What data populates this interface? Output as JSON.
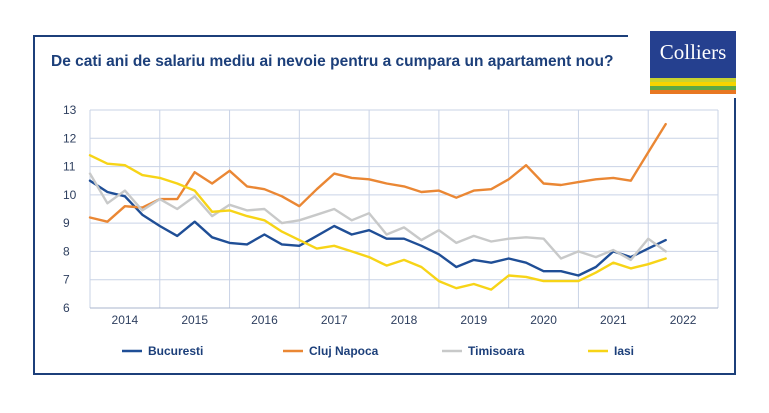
{
  "title": "De cati ani de salariu mediu ai nevoie pentru a cumpara un apartament nou?",
  "logo": {
    "text": "Colliers",
    "stripe_colors": [
      "#c8d32e",
      "#f5d400",
      "#5ca845",
      "#e87722"
    ]
  },
  "chart_data": {
    "type": "line",
    "title": "De cati ani de salariu mediu ai nevoie pentru a cumpara un apartament nou?",
    "xlabel": "",
    "ylabel": "",
    "ylim": [
      6,
      13
    ],
    "xlim": [
      2013.5,
      2022.5
    ],
    "y_ticks": [
      "6",
      "7",
      "8",
      "9",
      "10",
      "11",
      "12",
      "13"
    ],
    "x_ticks": [
      "2014",
      "2015",
      "2016",
      "2017",
      "2018",
      "2019",
      "2020",
      "2021",
      "2022"
    ],
    "grid": true,
    "legend_position": "bottom",
    "series": [
      {
        "name": "Bucuresti",
        "color": "#1f4e96",
        "points": [
          [
            2013.5,
            10.5
          ],
          [
            2013.75,
            10.1
          ],
          [
            2014,
            9.95
          ],
          [
            2014.25,
            9.3
          ],
          [
            2014.5,
            8.9
          ],
          [
            2014.75,
            8.55
          ],
          [
            2015,
            9.05
          ],
          [
            2015.25,
            8.5
          ],
          [
            2015.5,
            8.3
          ],
          [
            2015.75,
            8.25
          ],
          [
            2016,
            8.6
          ],
          [
            2016.25,
            8.25
          ],
          [
            2016.5,
            8.2
          ],
          [
            2016.75,
            8.55
          ],
          [
            2017,
            8.9
          ],
          [
            2017.25,
            8.6
          ],
          [
            2017.5,
            8.75
          ],
          [
            2017.75,
            8.45
          ],
          [
            2018,
            8.45
          ],
          [
            2018.25,
            8.2
          ],
          [
            2018.5,
            7.9
          ],
          [
            2018.75,
            7.45
          ],
          [
            2019,
            7.7
          ],
          [
            2019.25,
            7.6
          ],
          [
            2019.5,
            7.75
          ],
          [
            2019.75,
            7.6
          ],
          [
            2020,
            7.3
          ],
          [
            2020.25,
            7.3
          ],
          [
            2020.5,
            7.15
          ],
          [
            2020.75,
            7.45
          ],
          [
            2021,
            8.0
          ],
          [
            2021.25,
            7.8
          ],
          [
            2021.5,
            8.1
          ],
          [
            2021.75,
            8.4
          ]
        ]
      },
      {
        "name": "Cluj Napoca",
        "color": "#ea8734",
        "points": [
          [
            2013.5,
            9.2
          ],
          [
            2013.75,
            9.05
          ],
          [
            2014,
            9.6
          ],
          [
            2014.25,
            9.55
          ],
          [
            2014.5,
            9.85
          ],
          [
            2014.75,
            9.85
          ],
          [
            2015,
            10.8
          ],
          [
            2015.25,
            10.4
          ],
          [
            2015.5,
            10.85
          ],
          [
            2015.75,
            10.3
          ],
          [
            2016,
            10.2
          ],
          [
            2016.25,
            9.95
          ],
          [
            2016.5,
            9.6
          ],
          [
            2016.75,
            10.2
          ],
          [
            2017,
            10.75
          ],
          [
            2017.25,
            10.6
          ],
          [
            2017.5,
            10.55
          ],
          [
            2017.75,
            10.4
          ],
          [
            2018,
            10.3
          ],
          [
            2018.25,
            10.1
          ],
          [
            2018.5,
            10.15
          ],
          [
            2018.75,
            9.9
          ],
          [
            2019,
            10.15
          ],
          [
            2019.25,
            10.2
          ],
          [
            2019.5,
            10.55
          ],
          [
            2019.75,
            11.05
          ],
          [
            2020,
            10.4
          ],
          [
            2020.25,
            10.35
          ],
          [
            2020.5,
            10.45
          ],
          [
            2020.75,
            10.55
          ],
          [
            2021,
            10.6
          ],
          [
            2021.25,
            10.5
          ],
          [
            2021.5,
            11.5
          ],
          [
            2021.75,
            12.5
          ]
        ]
      },
      {
        "name": "Timisoara",
        "color": "#c8c9c9",
        "points": [
          [
            2013.5,
            10.75
          ],
          [
            2013.75,
            9.7
          ],
          [
            2014,
            10.15
          ],
          [
            2014.25,
            9.45
          ],
          [
            2014.5,
            9.85
          ],
          [
            2014.75,
            9.5
          ],
          [
            2015,
            9.95
          ],
          [
            2015.25,
            9.25
          ],
          [
            2015.5,
            9.65
          ],
          [
            2015.75,
            9.45
          ],
          [
            2016,
            9.5
          ],
          [
            2016.25,
            9.0
          ],
          [
            2016.5,
            9.1
          ],
          [
            2016.75,
            9.3
          ],
          [
            2017,
            9.5
          ],
          [
            2017.25,
            9.1
          ],
          [
            2017.5,
            9.35
          ],
          [
            2017.75,
            8.6
          ],
          [
            2018,
            8.85
          ],
          [
            2018.25,
            8.4
          ],
          [
            2018.5,
            8.75
          ],
          [
            2018.75,
            8.3
          ],
          [
            2019,
            8.55
          ],
          [
            2019.25,
            8.35
          ],
          [
            2019.5,
            8.45
          ],
          [
            2019.75,
            8.5
          ],
          [
            2020,
            8.45
          ],
          [
            2020.25,
            7.75
          ],
          [
            2020.5,
            8.0
          ],
          [
            2020.75,
            7.8
          ],
          [
            2021,
            8.05
          ],
          [
            2021.25,
            7.7
          ],
          [
            2021.5,
            8.45
          ],
          [
            2021.75,
            8.0
          ]
        ]
      },
      {
        "name": "Iasi",
        "color": "#f7d417",
        "points": [
          [
            2013.5,
            11.4
          ],
          [
            2013.75,
            11.1
          ],
          [
            2014,
            11.05
          ],
          [
            2014.25,
            10.7
          ],
          [
            2014.5,
            10.6
          ],
          [
            2014.75,
            10.4
          ],
          [
            2015,
            10.15
          ],
          [
            2015.25,
            9.4
          ],
          [
            2015.5,
            9.45
          ],
          [
            2015.75,
            9.25
          ],
          [
            2016,
            9.1
          ],
          [
            2016.25,
            8.7
          ],
          [
            2016.5,
            8.4
          ],
          [
            2016.75,
            8.1
          ],
          [
            2017,
            8.2
          ],
          [
            2017.25,
            8.0
          ],
          [
            2017.5,
            7.8
          ],
          [
            2017.75,
            7.5
          ],
          [
            2018,
            7.7
          ],
          [
            2018.25,
            7.45
          ],
          [
            2018.5,
            6.95
          ],
          [
            2018.75,
            6.7
          ],
          [
            2019,
            6.85
          ],
          [
            2019.25,
            6.65
          ],
          [
            2019.5,
            7.15
          ],
          [
            2019.75,
            7.1
          ],
          [
            2020,
            6.95
          ],
          [
            2020.25,
            6.95
          ],
          [
            2020.5,
            6.95
          ],
          [
            2020.75,
            7.25
          ],
          [
            2021,
            7.6
          ],
          [
            2021.25,
            7.4
          ],
          [
            2021.5,
            7.55
          ],
          [
            2021.75,
            7.75
          ]
        ]
      }
    ]
  }
}
